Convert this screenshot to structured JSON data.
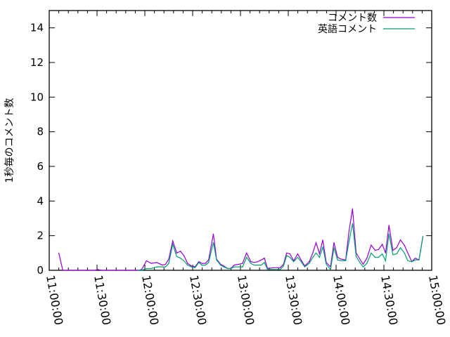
{
  "chart_data": {
    "type": "line",
    "title": "",
    "xlabel": "",
    "ylabel": "1秒毎のコメント数",
    "xlim": [
      "11:00:00",
      "15:00:00"
    ],
    "ylim": [
      0,
      15
    ],
    "x_ticks": [
      "11:00:00",
      "11:30:00",
      "12:00:00",
      "12:30:00",
      "13:00:00",
      "13:30:00",
      "14:00:00",
      "14:30:00",
      "15:00:00"
    ],
    "y_ticks": [
      "0",
      "2",
      "4",
      "6",
      "8",
      "10",
      "12",
      "14"
    ],
    "grid": false,
    "legend_position": "top-right",
    "series": [
      {
        "name": "コメント数",
        "color": "#9400d3",
        "x": [
          "11:06:00",
          "11:08:30",
          "11:29:00",
          "11:30:00",
          "11:33:00",
          "11:56:00",
          "11:58:00",
          "12:01:00",
          "12:04:00",
          "12:07:30",
          "12:11:00",
          "12:13:00",
          "12:15:00",
          "12:17:30",
          "12:20:00",
          "12:22:20",
          "12:24:30",
          "12:26:50",
          "12:29:10",
          "12:31:30",
          "12:33:50",
          "12:35:50",
          "12:38:00",
          "12:40:00",
          "12:43:00",
          "12:45:00",
          "12:47:30",
          "12:49:30",
          "12:51:50",
          "12:54:00",
          "12:56:00",
          "12:59:00",
          "13:01:20",
          "13:03:50",
          "13:06:30",
          "13:08:40",
          "13:10:50",
          "13:13:05",
          "13:15:00",
          "13:17:00",
          "13:21:00",
          "13:25:00",
          "13:27:00",
          "13:29:00",
          "13:31:00",
          "13:33:25",
          "13:35:55",
          "13:38:00",
          "13:40:20",
          "13:43:10",
          "13:45:25",
          "13:47:25",
          "13:49:35",
          "13:51:40",
          "13:53:50",
          "13:56:30",
          "13:58:40",
          "14:00:55",
          "14:03:00",
          "14:06:00",
          "14:08:10",
          "14:10:20",
          "14:12:35",
          "14:14:55",
          "14:17:00",
          "14:19:20",
          "14:22:00",
          "14:24:30",
          "14:26:40",
          "14:29:00",
          "14:31:00",
          "14:33:10",
          "14:35:40",
          "14:38:00",
          "14:40:20",
          "14:42:50",
          "14:45:00",
          "14:47:30",
          "14:49:40",
          "14:52:00",
          "14:54:30"
        ],
        "y": [
          1.0,
          0,
          0,
          0.05,
          0,
          0,
          0.05,
          0.55,
          0.4,
          0.45,
          0.3,
          0.35,
          0.65,
          1.7,
          1.0,
          1.1,
          0.85,
          0.4,
          0.25,
          0.2,
          0.5,
          0.4,
          0.4,
          0.6,
          2.1,
          0.65,
          0.35,
          0.25,
          0.1,
          0.1,
          0.3,
          0.35,
          0.4,
          1.0,
          0.5,
          0.45,
          0.5,
          0.6,
          0.7,
          0.1,
          0.15,
          0.15,
          0.35,
          1.0,
          0.95,
          0.55,
          0.95,
          0.6,
          0.25,
          0.5,
          1.0,
          1.6,
          0.95,
          1.75,
          0.45,
          0.2,
          1.6,
          0.75,
          0.65,
          0.6,
          2.3,
          3.55,
          1.0,
          0.65,
          0.35,
          0.7,
          1.45,
          1.15,
          1.2,
          1.5,
          1.0,
          2.6,
          1.15,
          1.3,
          1.75,
          1.45,
          1.0,
          0.5,
          0.7,
          0.6,
          1.95
        ]
      },
      {
        "name": "英語コメント",
        "color": "#009e73",
        "x": [
          "11:56:00",
          "11:58:00",
          "12:01:00",
          "12:04:00",
          "12:07:30",
          "12:11:00",
          "12:13:00",
          "12:15:00",
          "12:17:30",
          "12:20:00",
          "12:22:20",
          "12:24:30",
          "12:26:50",
          "12:29:10",
          "12:31:30",
          "12:33:50",
          "12:35:50",
          "12:38:00",
          "12:40:00",
          "12:43:00",
          "12:45:00",
          "12:47:30",
          "12:49:30",
          "12:51:50",
          "12:54:00",
          "12:56:00",
          "12:59:00",
          "13:01:20",
          "13:03:50",
          "13:06:30",
          "13:08:40",
          "13:10:50",
          "13:13:05",
          "13:15:00",
          "13:17:00",
          "13:21:00",
          "13:25:00",
          "13:27:00",
          "13:29:00",
          "13:31:00",
          "13:33:25",
          "13:35:55",
          "13:38:00",
          "13:40:20",
          "13:43:10",
          "13:45:25",
          "13:47:25",
          "13:49:35",
          "13:51:40",
          "13:53:50",
          "13:56:30",
          "13:58:40",
          "14:00:55",
          "14:03:00",
          "14:06:00",
          "14:08:10",
          "14:10:20",
          "14:12:35",
          "14:14:55",
          "14:17:00",
          "14:19:20",
          "14:22:00",
          "14:24:30",
          "14:26:40",
          "14:29:00",
          "14:31:00",
          "14:33:10",
          "14:35:40",
          "14:38:00",
          "14:40:20",
          "14:42:50",
          "14:45:00",
          "14:47:30",
          "14:49:40",
          "14:52:00",
          "14:54:30"
        ],
        "y": [
          0,
          0,
          0.1,
          0.1,
          0.2,
          0.2,
          0.2,
          0.4,
          1.5,
          0.8,
          0.7,
          0.55,
          0.3,
          0.2,
          0.15,
          0.45,
          0.3,
          0.3,
          0.45,
          1.6,
          0.6,
          0.3,
          0.2,
          0.1,
          0.1,
          0.2,
          0.2,
          0.2,
          0.75,
          0.4,
          0.3,
          0.3,
          0.3,
          0.45,
          0.05,
          0.05,
          0.05,
          0.25,
          0.85,
          0.75,
          0.5,
          0.75,
          0.5,
          0.2,
          0.4,
          0.75,
          1.0,
          0.75,
          1.35,
          0.35,
          0.05,
          1.3,
          0.6,
          0.55,
          0.55,
          1.7,
          2.7,
          0.8,
          0.45,
          0.2,
          0.4,
          1.0,
          0.75,
          0.75,
          0.95,
          0.55,
          2.1,
          0.9,
          0.95,
          1.3,
          1.0,
          0.55,
          0.5,
          0.6,
          0.6,
          1.95
        ]
      }
    ]
  }
}
